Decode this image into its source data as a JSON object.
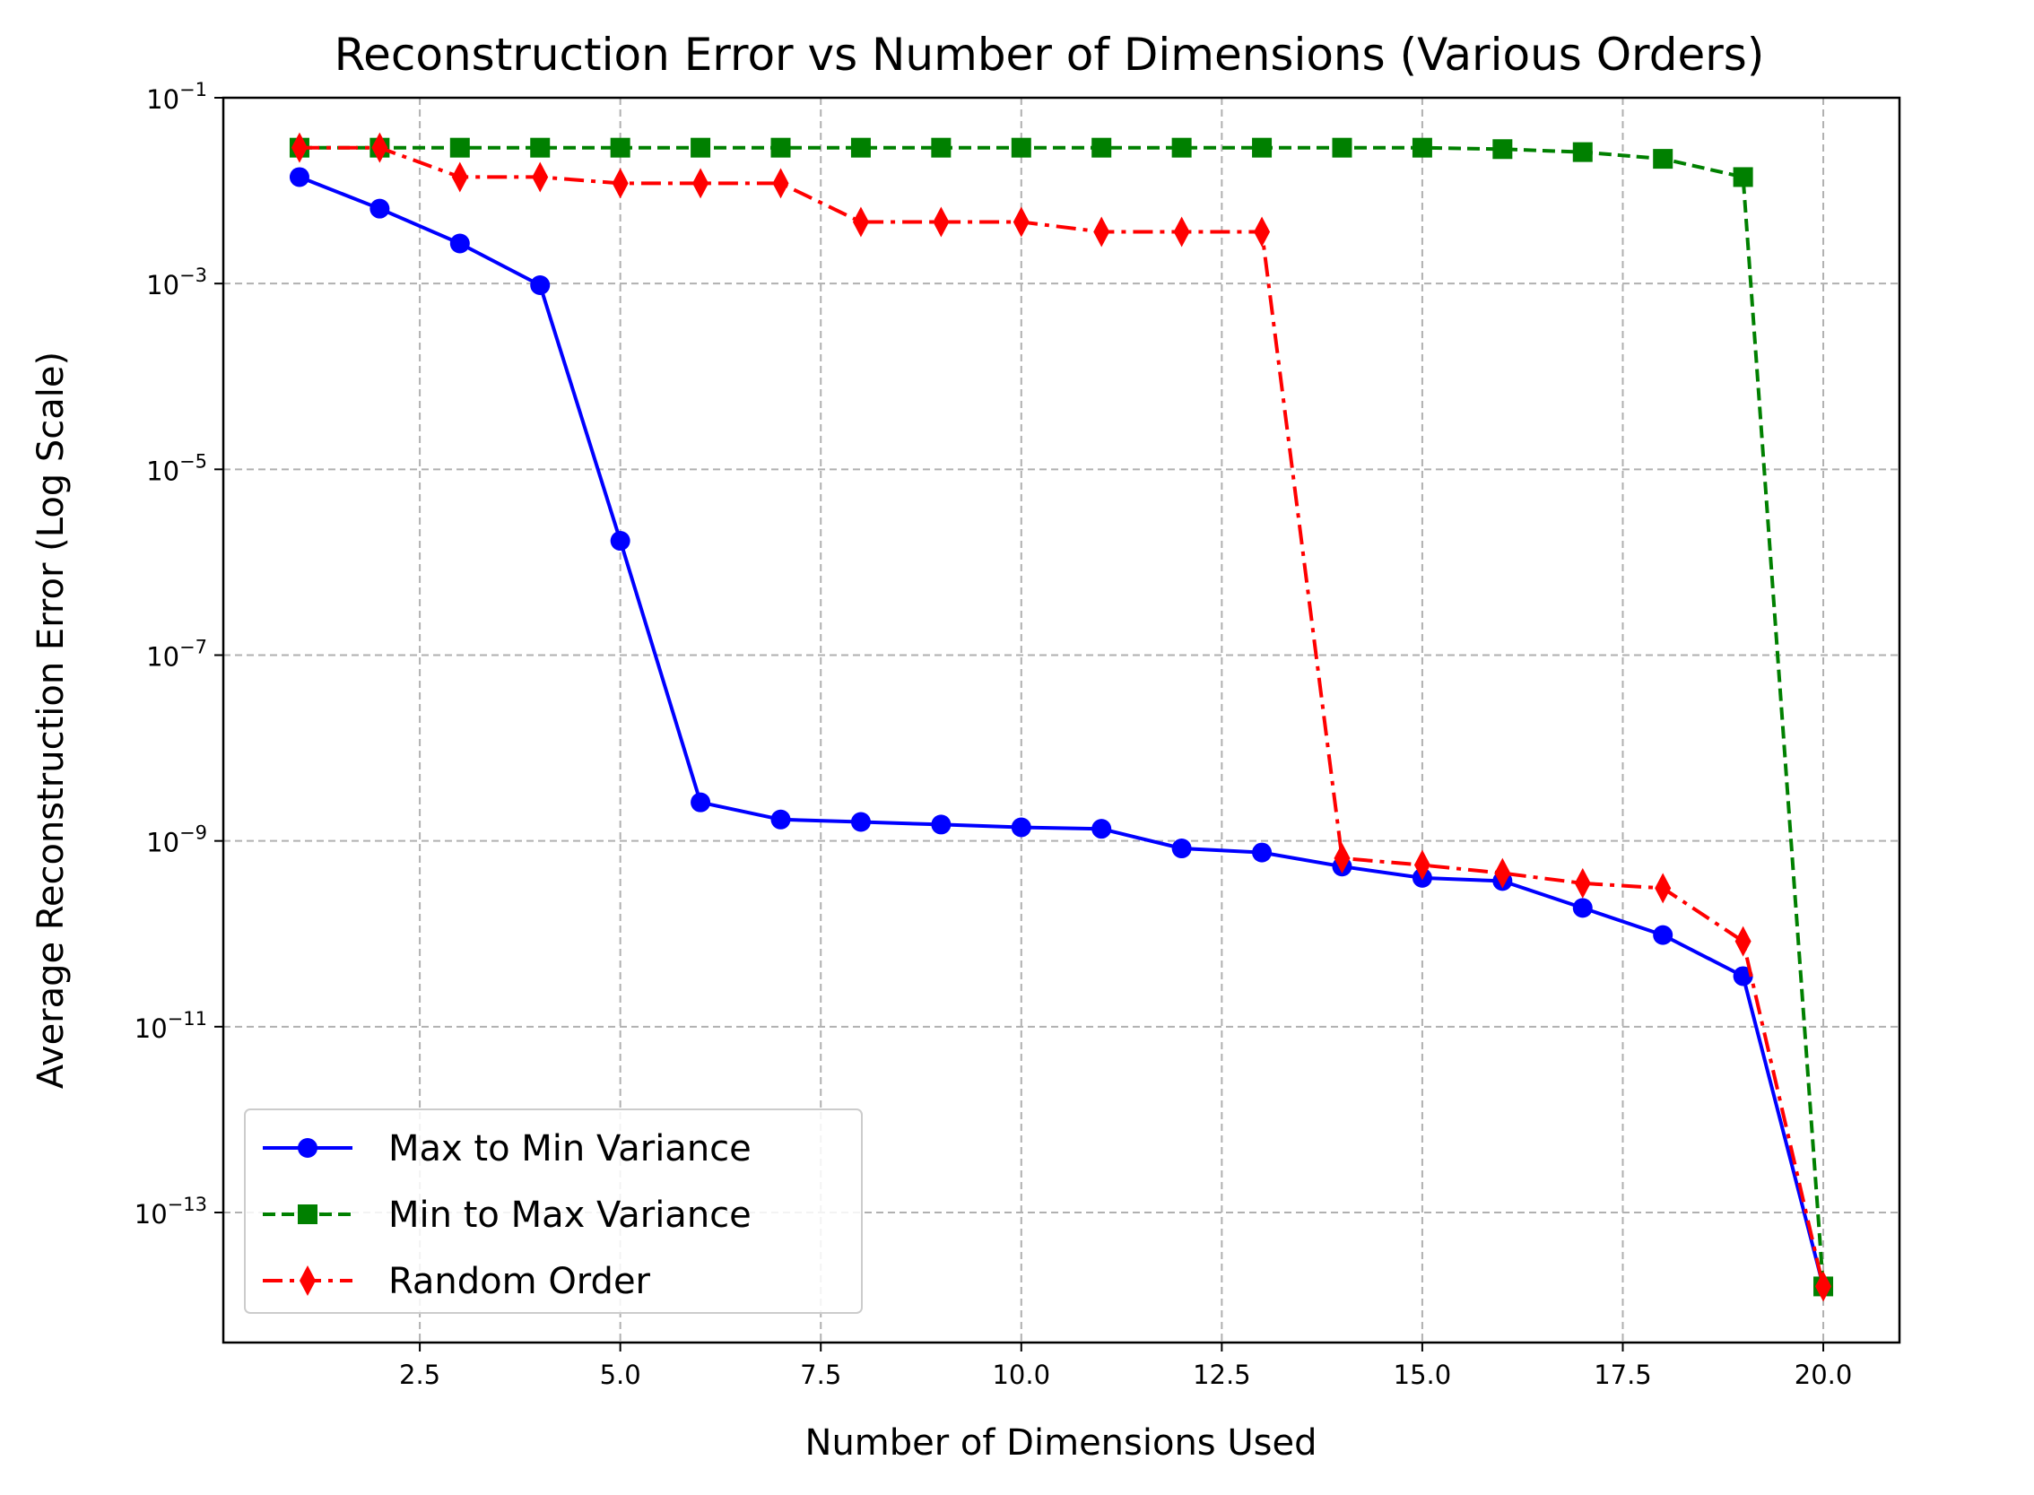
{
  "chart_data": {
    "type": "line",
    "title": "Reconstruction Error vs Number of Dimensions (Various Orders)",
    "xlabel": "Number of Dimensions Used",
    "ylabel": "Average Reconstruction Error (Log Scale)",
    "y_scale": "log",
    "xlim": [
      0.05,
      20.95
    ],
    "ylim_log10": [
      -14.4,
      -1.0
    ],
    "x_ticks": [
      2.5,
      5.0,
      7.5,
      10.0,
      12.5,
      15.0,
      17.5,
      20.0
    ],
    "x_tick_labels": [
      "2.5",
      "5.0",
      "7.5",
      "10.0",
      "12.5",
      "15.0",
      "17.5",
      "20.0"
    ],
    "y_ticks_exp": [
      -1,
      -3,
      -5,
      -7,
      -9,
      -11,
      -13
    ],
    "y_tick_base": "10",
    "y_tick_exponents": [
      "−1",
      "−3",
      "−5",
      "−7",
      "−9",
      "−11",
      "−13"
    ],
    "grid": true,
    "legend_position": "lower-left",
    "x": [
      1,
      2,
      3,
      4,
      5,
      6,
      7,
      8,
      9,
      10,
      11,
      12,
      13,
      14,
      15,
      16,
      17,
      18,
      19,
      20
    ],
    "series": [
      {
        "name": "Max to Min Variance",
        "color": "#0000ff",
        "linestyle": "solid",
        "marker": "circle",
        "values": [
          0.014,
          0.0064,
          0.0027,
          0.00096,
          1.7e-06,
          2.6e-09,
          1.7e-09,
          1.6e-09,
          1.5e-09,
          1.4e-09,
          1.35e-09,
          8.3e-10,
          7.5e-10,
          5.3e-10,
          4e-10,
          3.7e-10,
          1.9e-10,
          9.7e-11,
          3.5e-11,
          1.6e-14
        ]
      },
      {
        "name": "Min to Max Variance",
        "color": "#008000",
        "linestyle": "dashed",
        "marker": "square",
        "values": [
          0.029,
          0.029,
          0.029,
          0.029,
          0.029,
          0.029,
          0.029,
          0.029,
          0.029,
          0.029,
          0.029,
          0.029,
          0.029,
          0.029,
          0.029,
          0.028,
          0.026,
          0.022,
          0.014,
          1.6e-14
        ]
      },
      {
        "name": "Random Order",
        "color": "#ff0000",
        "linestyle": "dashdot",
        "marker": "thin_diamond",
        "values": [
          0.029,
          0.029,
          0.014,
          0.014,
          0.012,
          0.012,
          0.012,
          0.0046,
          0.0046,
          0.0046,
          0.0036,
          0.0036,
          0.0036,
          6.5e-10,
          5.5e-10,
          4.5e-10,
          3.5e-10,
          3.1e-10,
          8.3e-11,
          1.6e-14
        ]
      }
    ]
  }
}
